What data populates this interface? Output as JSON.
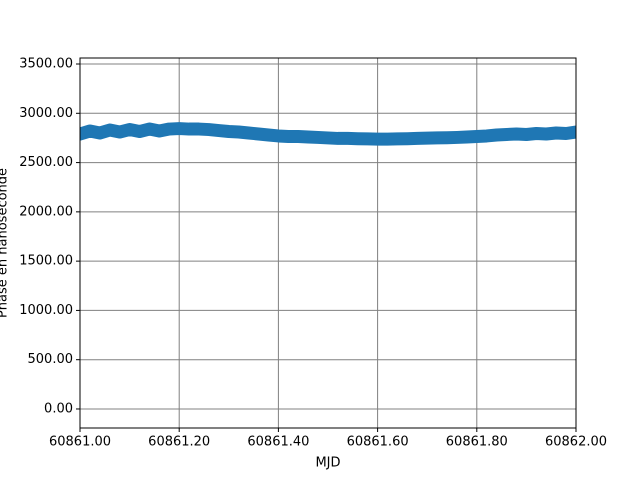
{
  "chart_data": {
    "type": "line",
    "x_label": "MJD",
    "y_label": "Phase en nanoseconde",
    "x": [
      60861.0,
      60861.02,
      60861.04,
      60861.06,
      60861.08,
      60861.1,
      60861.12,
      60861.14,
      60861.16,
      60861.18,
      60861.2,
      60861.22,
      60861.24,
      60861.26,
      60861.28,
      60861.3,
      60861.32,
      60861.34,
      60861.36,
      60861.38,
      60861.4,
      60861.42,
      60861.44,
      60861.46,
      60861.48,
      60861.5,
      60861.52,
      60861.54,
      60861.56,
      60861.58,
      60861.6,
      60861.62,
      60861.64,
      60861.66,
      60861.68,
      60861.7,
      60861.72,
      60861.74,
      60861.76,
      60861.78,
      60861.8,
      60861.82,
      60861.84,
      60861.86,
      60861.88,
      60861.9,
      60861.92,
      60861.94,
      60861.96,
      60861.98,
      60862.0
    ],
    "series": [
      {
        "color": "#1f77b4",
        "values": [
          2790,
          2820,
          2800,
          2830,
          2810,
          2835,
          2815,
          2840,
          2820,
          2840,
          2845,
          2840,
          2840,
          2835,
          2825,
          2815,
          2810,
          2800,
          2790,
          2780,
          2770,
          2765,
          2765,
          2760,
          2755,
          2750,
          2745,
          2745,
          2742,
          2740,
          2738,
          2738,
          2740,
          2742,
          2745,
          2748,
          2750,
          2752,
          2755,
          2760,
          2765,
          2770,
          2780,
          2785,
          2790,
          2785,
          2795,
          2790,
          2800,
          2795,
          2810
        ]
      }
    ],
    "xlim": [
      60861.0,
      60862.0
    ],
    "ylim": [
      -193,
      3561
    ],
    "xticks": [
      {
        "value": 60861.0,
        "label": "60861.00"
      },
      {
        "value": 60861.2,
        "label": "60861.20"
      },
      {
        "value": 60861.4,
        "label": "60861.40"
      },
      {
        "value": 60861.6,
        "label": "60861.60"
      },
      {
        "value": 60861.8,
        "label": "60861.80"
      },
      {
        "value": 60862.0,
        "label": "60862.00"
      }
    ],
    "yticks": [
      {
        "value": 0,
        "label": "0.00"
      },
      {
        "value": 500,
        "label": "500.00"
      },
      {
        "value": 1000,
        "label": "1000.00"
      },
      {
        "value": 1500,
        "label": "1500.00"
      },
      {
        "value": 2000,
        "label": "2000.00"
      },
      {
        "value": 2500,
        "label": "2500.00"
      },
      {
        "value": 3000,
        "label": "3000.00"
      },
      {
        "value": 3500,
        "label": "3500.00"
      }
    ],
    "grid": true
  }
}
